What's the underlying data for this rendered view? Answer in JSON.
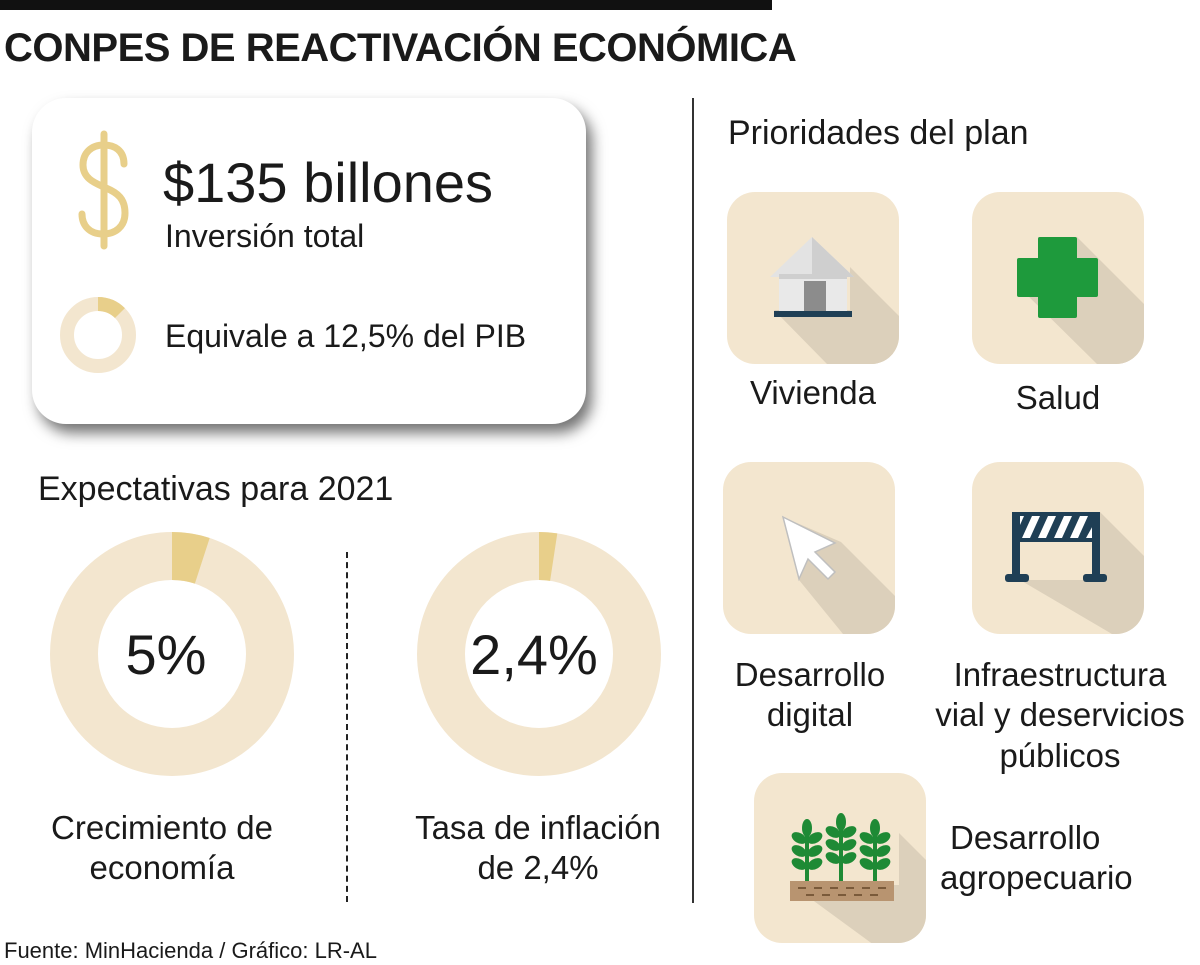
{
  "header": {
    "title": "CONPES DE REACTIVACIÓN ECONÓMICA"
  },
  "investment": {
    "amount": "$135 billones",
    "label": "Inversión total",
    "pib_text": "Equivale a 12,5% del PIB"
  },
  "expectations": {
    "title": "Expectativas para 2021"
  },
  "priorities": {
    "title": "Prioridades del plan",
    "items": [
      {
        "label_lines": [
          "Vivienda"
        ],
        "icon": "house-icon"
      },
      {
        "label_lines": [
          "Salud"
        ],
        "icon": "medical-cross-icon"
      },
      {
        "label_lines": [
          "Desarrollo",
          "digital"
        ],
        "icon": "cursor-arrow-icon"
      },
      {
        "label_lines": [
          "Infraestructura",
          "vial y deservicios",
          "públicos"
        ],
        "icon": "road-barrier-icon"
      },
      {
        "label_lines": [
          "Desarrollo",
          "agropecuario"
        ],
        "icon": "crops-icon"
      }
    ]
  },
  "colors": {
    "donut_track": "#f3e6cf",
    "donut_fill": "#e8cf8a",
    "tile_bg": "#f3e6cf",
    "tile_shadow": "#dcd0bb",
    "dollar": "#e8cf8a",
    "cross": "#1e9a3c",
    "navy": "#1f3f55"
  },
  "chart_data": [
    {
      "type": "pie",
      "variant": "donut",
      "values": [
        12.5,
        87.5
      ],
      "labels": [
        "Equivale a 12,5% del PIB",
        ""
      ]
    },
    {
      "type": "pie",
      "variant": "donut",
      "center_label": "5%",
      "values": [
        5,
        95
      ],
      "caption_lines": [
        "Crecimiento de",
        "economía"
      ]
    },
    {
      "type": "pie",
      "variant": "donut",
      "center_label": "2,4%",
      "values": [
        2.4,
        97.6
      ],
      "caption_lines": [
        "Tasa de inflación",
        "de 2,4%"
      ]
    }
  ],
  "footer": {
    "source": "Fuente: MinHacienda / Gráfico: LR-AL"
  }
}
